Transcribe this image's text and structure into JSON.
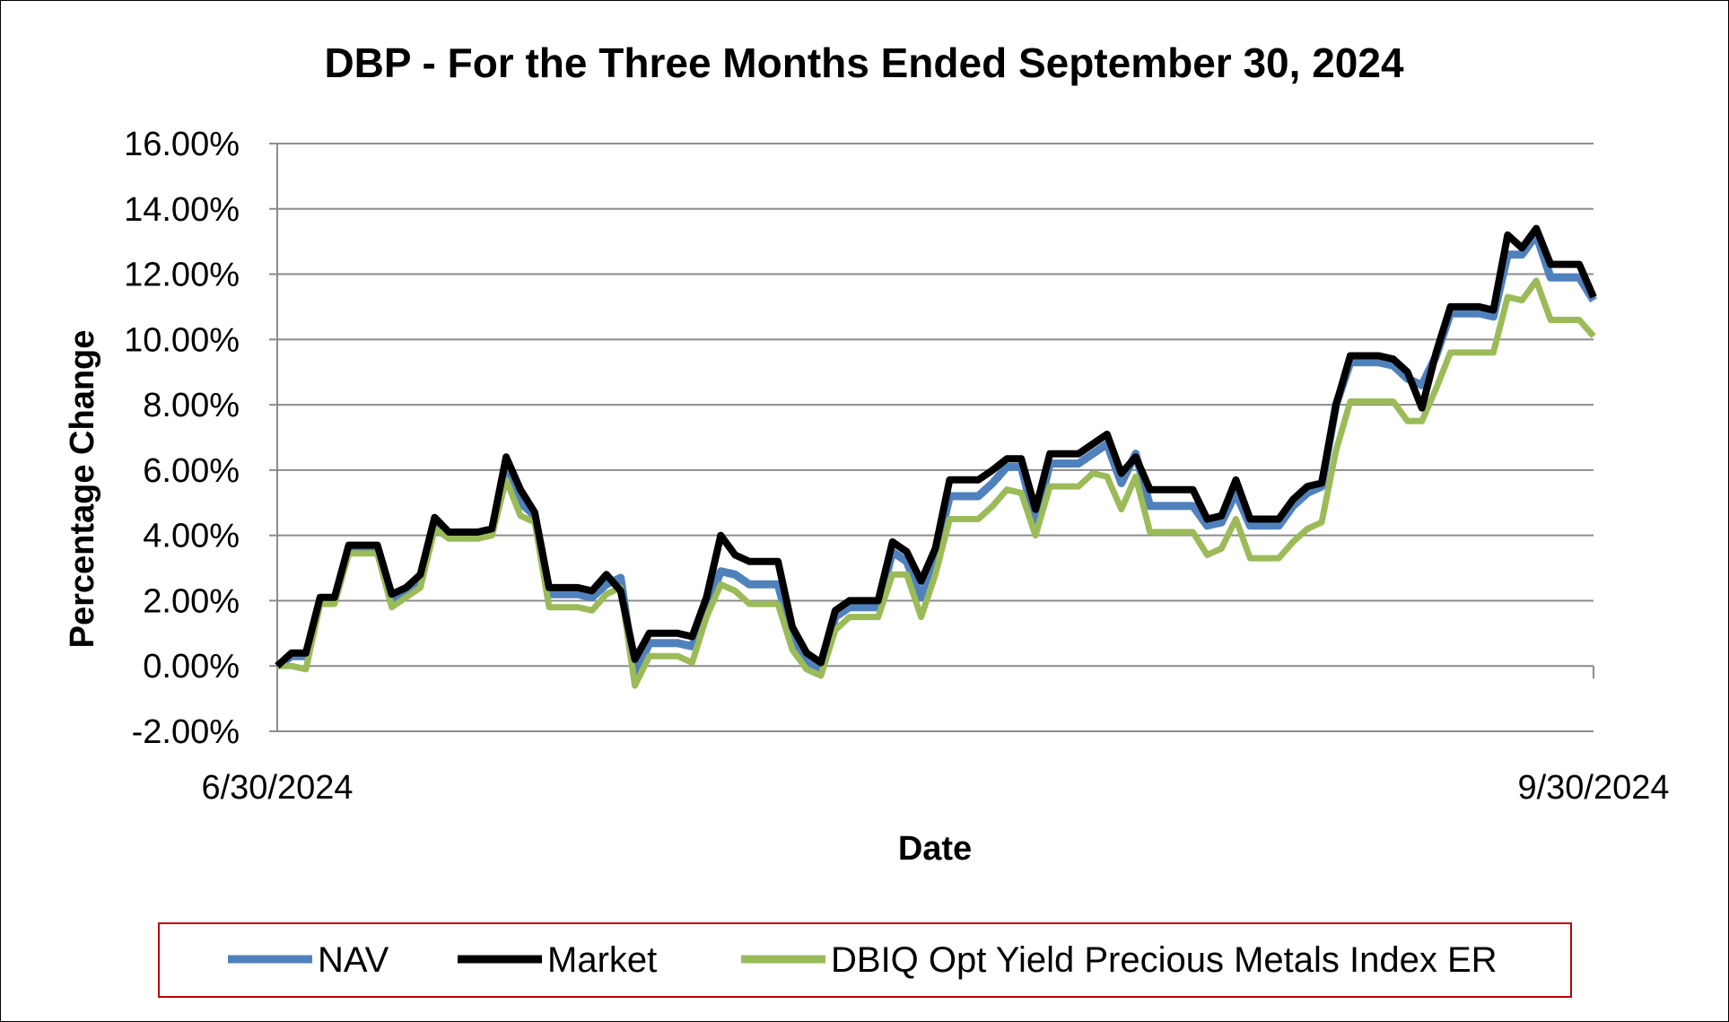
{
  "chart_data": {
    "type": "line",
    "title": "DBP - For the Three Months Ended September 30, 2024",
    "xlabel": "Date",
    "ylabel": "Percentage Change",
    "x_tick_labels": [
      "6/30/2024",
      "9/30/2024"
    ],
    "y_ticks": [
      -2,
      0,
      2,
      4,
      6,
      8,
      10,
      12,
      14,
      16
    ],
    "y_tick_labels": [
      "-2.00%",
      "0.00%",
      "2.00%",
      "4.00%",
      "6.00%",
      "8.00%",
      "10.00%",
      "12.00%",
      "14.00%",
      "16.00%"
    ],
    "ylim": [
      -2,
      16
    ],
    "grid": true,
    "legend_position": "bottom",
    "series": [
      {
        "name": "NAV",
        "color": "#4F81BD",
        "values": [
          0,
          0.3,
          0.3,
          2.0,
          2.0,
          3.55,
          3.55,
          3.55,
          2.0,
          2.2,
          2.6,
          4.4,
          4.0,
          4.0,
          4.0,
          4.1,
          6.1,
          5.0,
          4.6,
          2.2,
          2.2,
          2.2,
          2.1,
          2.5,
          2.7,
          -0.3,
          0.7,
          0.7,
          0.7,
          0.6,
          1.8,
          2.9,
          2.8,
          2.5,
          2.5,
          2.5,
          0.9,
          0.1,
          -0.1,
          1.5,
          1.8,
          1.8,
          1.8,
          3.5,
          3.2,
          2.1,
          3.3,
          5.2,
          5.2,
          5.2,
          5.6,
          6.1,
          6.1,
          4.4,
          6.2,
          6.2,
          6.2,
          6.5,
          6.8,
          5.6,
          6.5,
          4.9,
          4.9,
          4.9,
          4.9,
          4.3,
          4.4,
          5.3,
          4.3,
          4.3,
          4.3,
          4.9,
          5.3,
          5.5,
          8.0,
          9.3,
          9.3,
          9.3,
          9.2,
          8.8,
          8.6,
          9.5,
          10.8,
          10.8,
          10.8,
          10.7,
          12.6,
          12.6,
          13.2,
          11.9,
          11.9,
          11.9,
          11.2
        ]
      },
      {
        "name": "Market",
        "color": "#000000",
        "values": [
          0,
          0.4,
          0.4,
          2.1,
          2.1,
          3.7,
          3.7,
          3.7,
          2.2,
          2.4,
          2.8,
          4.55,
          4.1,
          4.1,
          4.1,
          4.2,
          6.4,
          5.4,
          4.7,
          2.4,
          2.4,
          2.4,
          2.3,
          2.8,
          2.3,
          0.2,
          1.0,
          1.0,
          1.0,
          0.9,
          2.1,
          4.0,
          3.4,
          3.2,
          3.2,
          3.2,
          1.2,
          0.4,
          0.1,
          1.7,
          2.0,
          2.0,
          2.0,
          3.8,
          3.5,
          2.6,
          3.6,
          5.7,
          5.7,
          5.7,
          6.0,
          6.35,
          6.35,
          4.8,
          6.5,
          6.5,
          6.5,
          6.8,
          7.1,
          5.9,
          6.4,
          5.4,
          5.4,
          5.4,
          5.4,
          4.5,
          4.6,
          5.7,
          4.5,
          4.5,
          4.5,
          5.1,
          5.5,
          5.6,
          8.0,
          9.5,
          9.5,
          9.5,
          9.4,
          9.0,
          7.9,
          9.6,
          11.0,
          11.0,
          11.0,
          10.9,
          13.2,
          12.8,
          13.4,
          12.3,
          12.3,
          12.3,
          11.3
        ]
      },
      {
        "name": "DBIQ Opt Yield Precious Metals Index ER",
        "color": "#9BBB59",
        "values": [
          0,
          0.0,
          -0.1,
          1.9,
          1.9,
          3.45,
          3.45,
          3.45,
          1.8,
          2.1,
          2.4,
          4.2,
          3.9,
          3.9,
          3.9,
          4.0,
          5.7,
          4.6,
          4.4,
          1.8,
          1.8,
          1.8,
          1.7,
          2.2,
          2.4,
          -0.6,
          0.3,
          0.3,
          0.3,
          0.1,
          1.5,
          2.5,
          2.3,
          1.9,
          1.9,
          1.9,
          0.5,
          -0.1,
          -0.3,
          1.1,
          1.5,
          1.5,
          1.5,
          2.8,
          2.8,
          1.5,
          2.8,
          4.5,
          4.5,
          4.5,
          4.9,
          5.4,
          5.3,
          4.0,
          5.5,
          5.5,
          5.5,
          5.9,
          5.8,
          4.8,
          5.8,
          4.1,
          4.1,
          4.1,
          4.1,
          3.4,
          3.6,
          4.5,
          3.3,
          3.3,
          3.3,
          3.8,
          4.2,
          4.4,
          6.6,
          8.1,
          8.1,
          8.1,
          8.1,
          7.5,
          7.5,
          8.5,
          9.6,
          9.6,
          9.6,
          9.6,
          11.3,
          11.2,
          11.8,
          10.6,
          10.6,
          10.6,
          10.1
        ]
      }
    ]
  }
}
